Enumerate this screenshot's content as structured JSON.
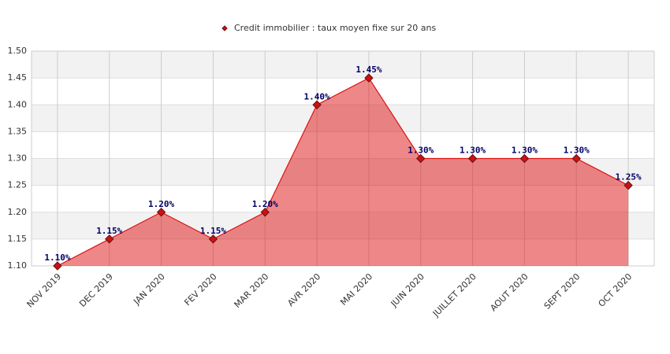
{
  "chart_data": {
    "type": "area",
    "categories": [
      "NOV 2019",
      "DEC 2019",
      "JAN 2020",
      "FEV 2020",
      "MAR 2020",
      "AVR 2020",
      "MAI 2020",
      "JUIN 2020",
      "JUILLET 2020",
      "AOUT 2020",
      "SEPT 2020",
      "OCT 2020"
    ],
    "series": [
      {
        "name": "Credit immobilier : taux moyen fixe sur 20 ans",
        "color": "#dd1111",
        "values": [
          1.1,
          1.15,
          1.2,
          1.15,
          1.2,
          1.4,
          1.45,
          1.3,
          1.3,
          1.3,
          1.3,
          1.25
        ],
        "value_labels": [
          "1.10%",
          "1.15%",
          "1.20%",
          "1.15%",
          "1.20%",
          "1.40%",
          "1.45%",
          "1.30%",
          "1.30%",
          "1.30%",
          "1.30%",
          "1.25%"
        ]
      }
    ],
    "ylim": [
      1.1,
      1.5
    ],
    "yticks": [
      {
        "value": 1.1,
        "label": "1.10"
      },
      1.15,
      {
        "value": 1.2,
        "label": "1.20"
      },
      1.25,
      {
        "value": 1.3,
        "label": "1.30"
      },
      1.35,
      {
        "value": 1.4,
        "label": "1.40"
      },
      1.45,
      {
        "value": 1.5,
        "label": "1.50"
      }
    ],
    "grid": true,
    "legend": "top"
  }
}
